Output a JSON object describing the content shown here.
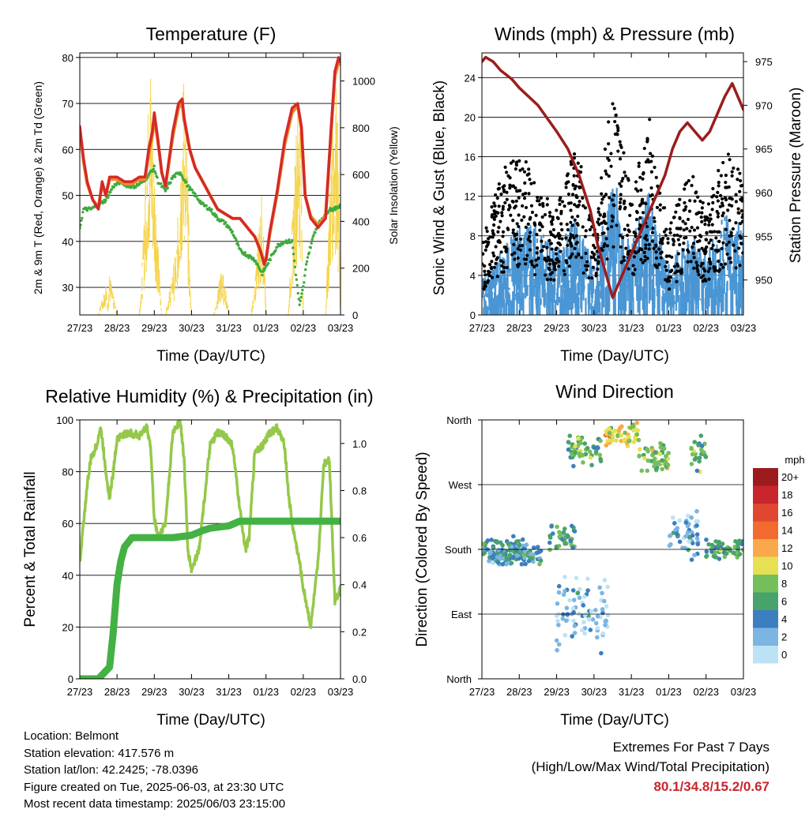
{
  "chart_data": [
    {
      "type": "line",
      "title": "Temperature (F)",
      "xlabel": "Time (Day/UTC)",
      "ylabel": "2m & 9m T (Red, Orange) & 2m Td (Green)",
      "y2label": "Solar Insolation (Yellow)",
      "ylim": [
        24,
        81
      ],
      "y2lim": [
        0,
        1120
      ],
      "yticks": [
        30,
        40,
        50,
        60,
        70,
        80
      ],
      "y2ticks": [
        0,
        200,
        400,
        600,
        800,
        1000
      ],
      "x_ticks": [
        "27/23",
        "28/23",
        "29/23",
        "30/23",
        "31/23",
        "01/23",
        "02/23",
        "03/23"
      ],
      "colors": {
        "t2m": "#d42a2a",
        "t9m": "#f08a24",
        "td": "#3faa3f",
        "solar": "#f5d44a"
      },
      "series": [
        {
          "key": "t2m",
          "x": [
            0,
            0.1,
            0.2,
            0.35,
            0.5,
            0.6,
            0.7,
            0.8,
            1.0,
            1.2,
            1.4,
            1.6,
            1.75,
            1.85,
            1.95,
            2.0,
            2.1,
            2.2,
            2.3,
            2.5,
            2.65,
            2.75,
            2.8,
            2.95,
            3.1,
            3.3,
            3.5,
            3.7,
            3.9,
            4.1,
            4.3,
            4.5,
            4.7,
            4.85,
            4.95,
            5.0,
            5.1,
            5.3,
            5.5,
            5.7,
            5.85,
            5.95,
            6.05,
            6.2,
            6.4,
            6.6,
            6.75,
            6.85,
            6.95,
            7.0
          ],
          "values": [
            65,
            58,
            53,
            49,
            47,
            53,
            50,
            54,
            54,
            53,
            53,
            54,
            54,
            60,
            64,
            68,
            62,
            55,
            52,
            64,
            70,
            71,
            67,
            60,
            56,
            53,
            50,
            47,
            46,
            45,
            45,
            43,
            41,
            38,
            35,
            36,
            42,
            51,
            62,
            69,
            70,
            65,
            50,
            45,
            43,
            45,
            65,
            77,
            80,
            79
          ]
        },
        {
          "key": "t9m",
          "x": [
            0,
            0.1,
            0.2,
            0.35,
            0.5,
            0.6,
            0.7,
            0.8,
            1.0,
            1.2,
            1.4,
            1.6,
            1.75,
            1.85,
            1.95,
            2.0,
            2.1,
            2.2,
            2.3,
            2.5,
            2.65,
            2.75,
            2.8,
            2.95,
            3.1,
            3.3,
            3.5,
            3.7,
            3.9,
            4.1,
            4.3,
            4.5,
            4.7,
            4.85,
            4.95,
            5.0,
            5.1,
            5.3,
            5.5,
            5.7,
            5.85,
            5.95,
            6.05,
            6.2,
            6.4,
            6.6,
            6.75,
            6.85,
            6.95,
            7.0
          ],
          "values": [
            64.5,
            57.5,
            52.5,
            49,
            47.5,
            52.5,
            50,
            53.5,
            53.5,
            52.5,
            52.5,
            53.5,
            53.5,
            59,
            63,
            67,
            61.5,
            55,
            52,
            63,
            69,
            70,
            66.5,
            60,
            56,
            53,
            50,
            47,
            46,
            45,
            45,
            43,
            41,
            38,
            35.5,
            36,
            41.5,
            50.5,
            61,
            68,
            69.5,
            64.5,
            50,
            45.5,
            43.5,
            45.5,
            64,
            76,
            79,
            78.5
          ]
        },
        {
          "key": "td",
          "x": [
            0,
            0.1,
            0.3,
            0.5,
            0.7,
            0.9,
            1.1,
            1.3,
            1.5,
            1.7,
            1.9,
            2.0,
            2.1,
            2.3,
            2.5,
            2.7,
            2.9,
            3.1,
            3.3,
            3.5,
            3.7,
            3.9,
            4.1,
            4.3,
            4.5,
            4.7,
            4.9,
            5.1,
            5.3,
            5.5,
            5.7,
            5.8,
            5.9,
            6.0,
            6.1,
            6.3,
            6.5,
            6.7,
            6.85,
            7.0
          ],
          "values": [
            43,
            47,
            47,
            48,
            49,
            52,
            53,
            52,
            52,
            53,
            55,
            56,
            53,
            51,
            54,
            55,
            52,
            50,
            48,
            47,
            45,
            44,
            42,
            38,
            37,
            36,
            33,
            36,
            39,
            40,
            40,
            33,
            26,
            30,
            36,
            42,
            45,
            47,
            47,
            48
          ]
        },
        {
          "key": "solar",
          "x": [
            0,
            0.2,
            0.5,
            0.7,
            0.75,
            0.8,
            1.0,
            1.6,
            1.7,
            1.8,
            1.9,
            2.0,
            2.1,
            2.2,
            2.25,
            2.3,
            2.6,
            2.7,
            2.8,
            2.9,
            2.95,
            3.0,
            3.05,
            3.6,
            3.7,
            3.8,
            3.9,
            4.0,
            4.6,
            4.7,
            4.8,
            4.9,
            5.0,
            5.6,
            5.7,
            5.8,
            5.9,
            5.95,
            6.0,
            6.6,
            6.7,
            6.8,
            6.9,
            7.0
          ],
          "values": [
            0,
            0,
            0,
            150,
            50,
            180,
            0,
            0,
            300,
            800,
            1100,
            700,
            300,
            0,
            0,
            0,
            300,
            700,
            1100,
            600,
            200,
            0,
            0,
            0,
            100,
            200,
            150,
            0,
            0,
            150,
            400,
            550,
            0,
            0,
            400,
            800,
            1000,
            800,
            0,
            0,
            500,
            950,
            1050,
            0
          ]
        }
      ]
    },
    {
      "type": "scatter",
      "title": "Winds (mph) & Pressure (mb)",
      "xlabel": "Time (Day/UTC)",
      "ylabel": "Sonic Wind & Gust (Blue, Black)",
      "y2label": "Station Pressure (Maroon)",
      "ylim": [
        0,
        26.5
      ],
      "y2lim": [
        946,
        976
      ],
      "yticks": [
        0,
        4,
        8,
        12,
        16,
        20,
        24
      ],
      "y2ticks": [
        950,
        955,
        960,
        965,
        970,
        975
      ],
      "x_ticks": [
        "27/23",
        "28/23",
        "29/23",
        "30/23",
        "31/23",
        "01/23",
        "02/23",
        "03/23"
      ],
      "colors": {
        "wind": "#4a96d4",
        "gust": "#000000",
        "pressure": "#9b1d1d"
      },
      "wind_envelope": {
        "x": [
          0,
          0.5,
          1.0,
          1.5,
          2.0,
          2.5,
          3.0,
          3.5,
          4.0,
          4.5,
          5.0,
          5.5,
          6.0,
          6.5,
          7.0
        ],
        "values": [
          3,
          5,
          7,
          7,
          5,
          8,
          4,
          11,
          6,
          10,
          4,
          7,
          5,
          8,
          7
        ]
      },
      "gust_envelope": {
        "x": [
          0,
          0.5,
          1.0,
          1.5,
          2.0,
          2.5,
          3.0,
          3.5,
          4.0,
          4.5,
          5.0,
          5.5,
          6.0,
          6.5,
          7.0
        ],
        "values": [
          6,
          12,
          14,
          11,
          9,
          15,
          7,
          19,
          10,
          17,
          7,
          13,
          9,
          14,
          12
        ]
      },
      "pressure": {
        "x": [
          0,
          0.1,
          0.3,
          0.5,
          0.8,
          1.0,
          1.5,
          2.0,
          2.3,
          2.6,
          2.9,
          3.1,
          3.3,
          3.5,
          3.7,
          4.0,
          4.3,
          4.6,
          4.9,
          5.1,
          5.3,
          5.5,
          5.7,
          5.9,
          6.1,
          6.3,
          6.5,
          6.7,
          6.85,
          7.0
        ],
        "values": [
          975,
          975.5,
          975,
          974,
          973,
          972,
          970,
          967,
          965,
          962,
          958,
          954,
          951,
          948,
          950,
          953,
          956,
          959,
          962,
          965,
          967,
          968,
          967,
          966,
          967,
          969,
          971,
          972.5,
          971,
          969.5
        ]
      }
    },
    {
      "type": "line",
      "title": "Relative Humidity (%) & Precipitation (in)",
      "xlabel": "Time (Day/UTC)",
      "ylabel": "Percent & Total Rainfall",
      "ylim": [
        0,
        100
      ],
      "y2lim": [
        0,
        1.1
      ],
      "yticks": [
        0,
        20,
        40,
        60,
        80,
        100
      ],
      "y2ticks": [
        "0.0",
        "0.2",
        "0.4",
        "0.6",
        "0.8",
        "1.0"
      ],
      "x_ticks": [
        "27/23",
        "28/23",
        "29/23",
        "30/23",
        "31/23",
        "01/23",
        "02/23",
        "03/23"
      ],
      "colors": {
        "rh": "#95c84a",
        "precip": "#44b144"
      },
      "series": [
        {
          "key": "rh",
          "x": [
            0,
            0.1,
            0.2,
            0.3,
            0.45,
            0.55,
            0.6,
            0.7,
            0.8,
            0.9,
            1.0,
            1.3,
            1.6,
            1.8,
            1.9,
            2.0,
            2.1,
            2.3,
            2.5,
            2.6,
            2.7,
            2.8,
            2.9,
            3.0,
            3.2,
            3.5,
            3.7,
            3.9,
            4.1,
            4.3,
            4.45,
            4.55,
            4.7,
            4.9,
            5.1,
            5.3,
            5.5,
            5.6,
            5.7,
            5.9,
            6.0,
            6.1,
            6.2,
            6.4,
            6.55,
            6.7,
            6.85,
            7.0
          ],
          "values": [
            45,
            60,
            75,
            85,
            90,
            97,
            93,
            80,
            70,
            80,
            93,
            95,
            94,
            97,
            90,
            62,
            55,
            60,
            95,
            98,
            99,
            85,
            50,
            42,
            50,
            90,
            95,
            94,
            90,
            65,
            50,
            55,
            88,
            90,
            95,
            97,
            90,
            72,
            60,
            45,
            35,
            28,
            20,
            45,
            83,
            85,
            30,
            35
          ]
        },
        {
          "key": "precip",
          "x": [
            0,
            0.5,
            0.8,
            0.9,
            1.0,
            1.1,
            1.2,
            1.4,
            1.6,
            2.0,
            2.5,
            3.0,
            3.3,
            3.5,
            4.0,
            4.3,
            5.0,
            6.0,
            7.0
          ],
          "values": [
            0,
            0,
            0.05,
            0.2,
            0.4,
            0.5,
            0.56,
            0.6,
            0.6,
            0.6,
            0.6,
            0.61,
            0.63,
            0.64,
            0.65,
            0.67,
            0.67,
            0.67,
            0.67
          ]
        }
      ]
    },
    {
      "type": "scatter",
      "title": "Wind Direction",
      "xlabel": "Time (Day/UTC)",
      "ylabel": "Direction (Colored By Speed)",
      "ylim": [
        0,
        360
      ],
      "ytick_labels": [
        "North",
        "East",
        "South",
        "West",
        "North"
      ],
      "x_ticks": [
        "27/23",
        "28/23",
        "29/23",
        "30/23",
        "31/23",
        "01/23",
        "02/23",
        "03/23"
      ],
      "legend": {
        "title": "mph",
        "labels": [
          "20+",
          "18",
          "16",
          "14",
          "12",
          "10",
          "8",
          "6",
          "4",
          "2",
          "0"
        ],
        "colors": [
          "#9b1b1f",
          "#c8252c",
          "#e04630",
          "#f26a2e",
          "#f9a84a",
          "#e6e052",
          "#74bf5a",
          "#48a26c",
          "#3b7fc0",
          "#7cb4e2",
          "#bde2f6"
        ]
      },
      "clusters": [
        {
          "x0": 0,
          "x1": 1.2,
          "dir": 180,
          "spread": 20,
          "speed": 5
        },
        {
          "x0": 0.2,
          "x1": 1.6,
          "dir": 170,
          "spread": 15,
          "speed": 4
        },
        {
          "x0": 1.8,
          "x1": 2.5,
          "dir": 195,
          "spread": 25,
          "speed": 6
        },
        {
          "x0": 2.3,
          "x1": 3.2,
          "dir": 315,
          "spread": 25,
          "speed": 7
        },
        {
          "x0": 2.0,
          "x1": 3.4,
          "dir": 90,
          "spread": 60,
          "speed": 2
        },
        {
          "x0": 3.3,
          "x1": 4.2,
          "dir": 340,
          "spread": 18,
          "speed": 10
        },
        {
          "x0": 4.2,
          "x1": 5.0,
          "dir": 305,
          "spread": 25,
          "speed": 8
        },
        {
          "x0": 5.0,
          "x1": 5.8,
          "dir": 200,
          "spread": 40,
          "speed": 3
        },
        {
          "x0": 5.6,
          "x1": 6.0,
          "dir": 310,
          "spread": 30,
          "speed": 7
        },
        {
          "x0": 6.0,
          "x1": 7.0,
          "dir": 180,
          "spread": 15,
          "speed": 6
        }
      ]
    }
  ],
  "station_info": {
    "location": "Location: Belmont",
    "elevation": "Station elevation: 417.576 m",
    "latlon": "Station lat/lon: 42.2425; -78.0396",
    "created": "Figure created on Tue, 2025-06-03, at 23:30 UTC",
    "timestamp": "Most recent data timestamp: 2025/06/03 23:15:00"
  },
  "extremes": {
    "line1": "Extremes For Past 7 Days",
    "line2": "(High/Low/Max Wind/Total Precipitation)",
    "values": "80.1/34.8/15.2/0.67"
  }
}
